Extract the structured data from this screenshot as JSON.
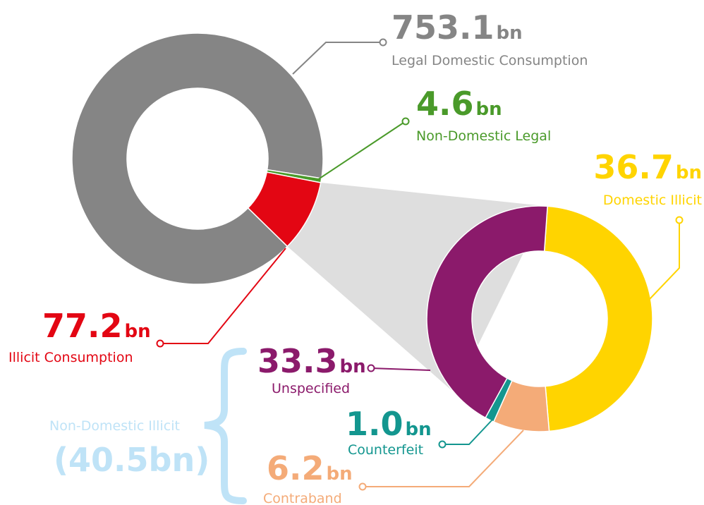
{
  "chart_data": [
    {
      "type": "donut",
      "unit": "bn",
      "categories": [
        "Legal Domestic Consumption",
        "Non-Domestic Legal",
        "Illicit Consumption"
      ],
      "values": [
        753.1,
        4.6,
        77.2
      ],
      "value_labels": [
        "753.1",
        "4.6",
        "77.2"
      ],
      "colors": [
        "#858585",
        "#4a9a2a",
        "#e30613"
      ]
    },
    {
      "type": "donut",
      "unit": "bn",
      "categories": [
        "Domestic Illicit",
        "Contraband",
        "Counterfeit",
        "Unspecified"
      ],
      "values": [
        36.7,
        6.2,
        1.0,
        33.3
      ],
      "value_labels": [
        "36.7",
        "6.2",
        "1.0",
        "33.3"
      ],
      "colors": [
        "#ffd400",
        "#f4ab78",
        "#13968f",
        "#8b1a6b"
      ],
      "group": {
        "label": "Non-Domestic Illicit",
        "value": 40.5,
        "value_label": "(40.5bn)",
        "color": "#bfe3f7"
      }
    }
  ]
}
